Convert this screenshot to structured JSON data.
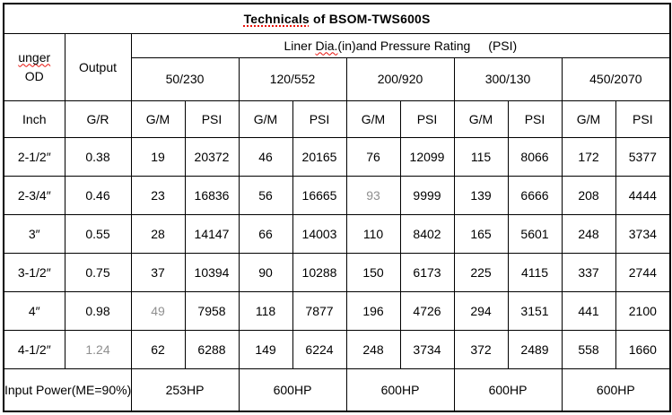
{
  "table": {
    "title": {
      "marked": "Technicals",
      "rest": " of BSOM-TWS600S"
    },
    "header": {
      "od": {
        "line1": "unger",
        "line2": "OD"
      },
      "output": "Output",
      "liner": {
        "pre": "Liner ",
        "marked": "Dia.",
        "post": "(in)and Pressure Rating",
        "psi": "(PSI)"
      },
      "sizes": [
        "50/230",
        "120/552",
        "200/920",
        "300/130",
        "450/2070"
      ],
      "units": [
        "Inch",
        "G/R",
        "G/M",
        "PSI",
        "G/M",
        "PSI",
        "G/M",
        "PSI",
        "G/M",
        "PSI",
        "G/M",
        "PSI"
      ]
    },
    "rows": [
      {
        "cells": [
          "2-1/2″",
          "0.38",
          "19",
          "20372",
          "46",
          "20165",
          "76",
          "12099",
          "115",
          "8066",
          "172",
          "5377"
        ]
      },
      {
        "cells": [
          "2-3/4″",
          "0.46",
          "23",
          "16836",
          "56",
          "16665",
          "93",
          "9999",
          "139",
          "6666",
          "208",
          "4444"
        ]
      },
      {
        "cells": [
          "3″",
          "0.55",
          "28",
          "14147",
          "66",
          "14003",
          "110",
          "8402",
          "165",
          "5601",
          "248",
          "3734"
        ]
      },
      {
        "cells": [
          "3-1/2″",
          "0.75",
          "37",
          "10394",
          "90",
          "10288",
          "150",
          "6173",
          "225",
          "4115",
          "337",
          "2744"
        ]
      },
      {
        "cells": [
          "4″",
          "0.98",
          "49",
          "7958",
          "118",
          "7877",
          "196",
          "4726",
          "294",
          "3151",
          "441",
          "2100"
        ]
      },
      {
        "cells": [
          "4-1/2″",
          "1.24",
          "62",
          "6288",
          "149",
          "6224",
          "248",
          "3734",
          "372",
          "2489",
          "558",
          "1660"
        ]
      }
    ],
    "footer": {
      "label": "Input Power(ME=90%)",
      "values": [
        "253HP",
        "600HP",
        "600HP",
        "600HP",
        "600HP"
      ]
    },
    "colors": {
      "border": "#000000",
      "text": "#000000",
      "spellcheck_red": "#e8120c",
      "faded_text": "#8f8f8f"
    },
    "faded_cells": [
      {
        "row": 1,
        "col": 6
      },
      {
        "row": 4,
        "col": 2
      },
      {
        "row": 5,
        "col": 1
      }
    ]
  }
}
